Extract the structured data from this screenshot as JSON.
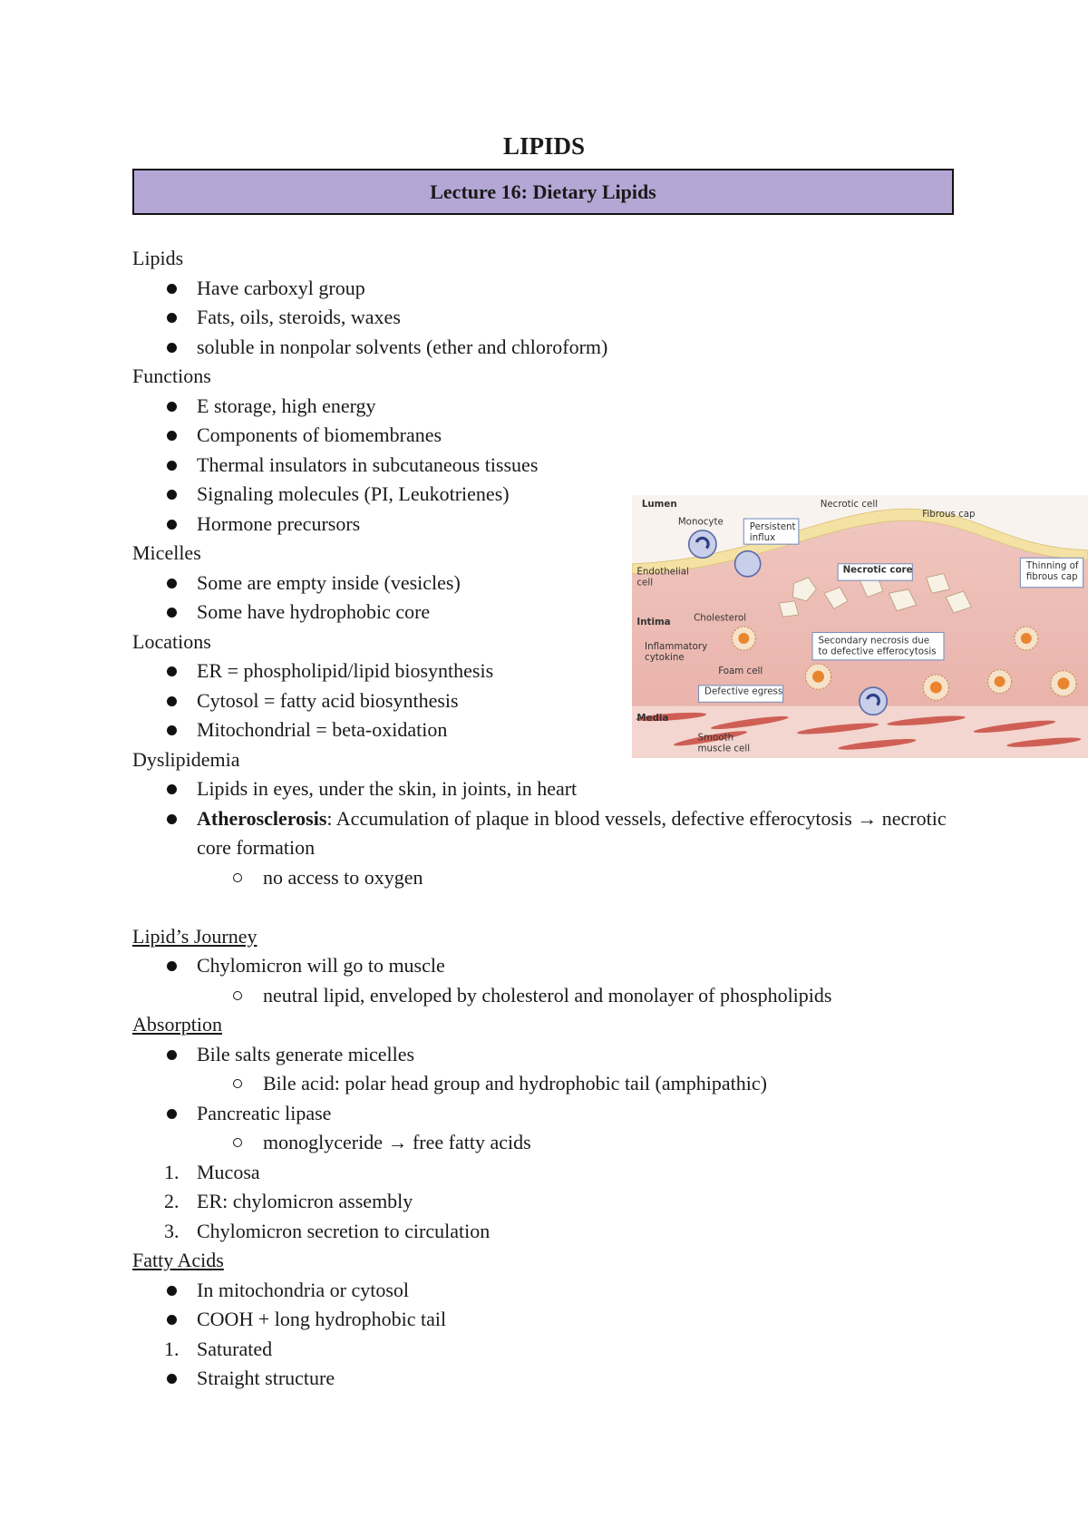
{
  "header": {
    "title": "LIPIDS",
    "lecture": "Lecture 16: Dietary Lipids"
  },
  "sections": [
    {
      "heading": "Lipids",
      "underline": false,
      "items": [
        {
          "text": "Have carboxyl group"
        },
        {
          "text": "Fats, oils, steroids, waxes"
        },
        {
          "text": "soluble in nonpolar solvents (ether and chloroform)"
        }
      ]
    },
    {
      "heading": "Functions",
      "underline": false,
      "items": [
        {
          "text": "E storage, high energy"
        },
        {
          "text": "Components of biomembranes"
        },
        {
          "text": "Thermal insulators in subcutaneous tissues"
        },
        {
          "text": "Signaling molecules (PI, Leukotrienes)"
        },
        {
          "text": "Hormone precursors"
        }
      ]
    },
    {
      "heading": "Micelles",
      "underline": false,
      "items": [
        {
          "text": "Some are empty inside (vesicles)"
        },
        {
          "text": "Some have hydrophobic core"
        }
      ]
    },
    {
      "heading": "Locations",
      "underline": false,
      "items": [
        {
          "text": "ER = phospholipid/lipid biosynthesis"
        },
        {
          "text": "Cytosol = fatty acid biosynthesis"
        },
        {
          "text": "Mitochondrial = beta-oxidation"
        }
      ]
    },
    {
      "heading": "Dyslipidemia",
      "underline": false,
      "items": [
        {
          "text": "Lipids in eyes, under the skin, in joints, in heart"
        },
        {
          "term": "Atherosclerosis",
          "text": ": Accumulation of plaque in blood vessels, defective efferocytosis → necrotic core formation",
          "sub": [
            "no access to oxygen"
          ]
        }
      ]
    },
    {
      "heading": "Lipid’s Journey",
      "underline": true,
      "items": [
        {
          "text": "Chylomicron will go to muscle",
          "sub": [
            "neutral lipid, enveloped by cholesterol and monolayer of phospholipids"
          ]
        }
      ]
    },
    {
      "heading": "Absorption",
      "underline": true,
      "items": [
        {
          "text": "Bile salts generate micelles",
          "sub": [
            "Bile acid: polar head group and hydrophobic tail (amphipathic)"
          ]
        },
        {
          "text": "Pancreatic lipase",
          "sub": [
            "monoglyceride → free fatty acids"
          ]
        },
        {
          "number": "1.",
          "text": "Mucosa"
        },
        {
          "number": "2.",
          "text": "ER: chylomicron assembly"
        },
        {
          "number": "3.",
          "text": "Chylomicron secretion to circulation"
        }
      ]
    },
    {
      "heading": "Fatty Acids",
      "underline": true,
      "items": [
        {
          "text": "In mitochondria or cytosol"
        },
        {
          "text": "COOH + long hydrophobic tail"
        },
        {
          "number": "1.",
          "text": "Saturated"
        },
        {
          "text": "Straight structure"
        }
      ]
    }
  ],
  "figure": {
    "labels": [
      {
        "lines": [
          "Lumen"
        ]
      },
      {
        "lines": [
          "Monocyte"
        ]
      },
      {
        "lines": [
          "Persistent",
          "influx"
        ]
      },
      {
        "lines": [
          "Necrotic cell"
        ]
      },
      {
        "lines": [
          "Fibrous cap"
        ]
      },
      {
        "lines": [
          "Endothelial",
          "cell"
        ]
      },
      {
        "lines": [
          "Necrotic core"
        ]
      },
      {
        "lines": [
          "Thinning of",
          "fibrous cap"
        ]
      },
      {
        "lines": [
          "Intima"
        ]
      },
      {
        "lines": [
          "Cholesterol"
        ]
      },
      {
        "lines": [
          "Inflammatory",
          "cytokine"
        ]
      },
      {
        "lines": [
          "Foam cell"
        ]
      },
      {
        "lines": [
          "Secondary necrosis due",
          "to defective efferocytosis"
        ]
      },
      {
        "lines": [
          "Defective egress"
        ]
      },
      {
        "lines": [
          "Media"
        ]
      },
      {
        "lines": [
          "Smooth",
          "muscle cell"
        ]
      }
    ]
  }
}
